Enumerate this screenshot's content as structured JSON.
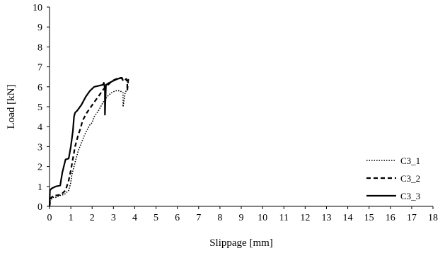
{
  "chart_data": {
    "type": "line",
    "title": "",
    "xlabel": "Slippage [mm]",
    "ylabel": "Load [kN]",
    "xlim": [
      0,
      18
    ],
    "ylim": [
      0,
      10
    ],
    "xticks": [
      0,
      1,
      2,
      3,
      4,
      5,
      6,
      7,
      8,
      9,
      10,
      11,
      12,
      13,
      14,
      15,
      16,
      17,
      18
    ],
    "yticks": [
      0,
      1,
      2,
      3,
      4,
      5,
      6,
      7,
      8,
      9,
      10
    ],
    "grid": false,
    "legend_position": "right",
    "series": [
      {
        "name": "C3_1",
        "line_style": "dotted",
        "x": [
          0,
          0.05,
          0.15,
          0.3,
          0.5,
          0.7,
          0.9,
          1.0,
          1.05,
          1.2,
          1.35,
          1.5,
          1.65,
          1.8,
          1.9,
          2.0,
          2.1,
          2.3,
          2.5,
          2.7,
          2.9,
          3.1,
          3.3,
          3.45,
          3.45,
          3.55,
          3.6,
          3.6
        ],
        "y": [
          0,
          0.3,
          0.45,
          0.45,
          0.55,
          0.6,
          0.8,
          1.2,
          1.6,
          2.2,
          2.8,
          3.2,
          3.6,
          3.9,
          4.1,
          4.2,
          4.5,
          4.8,
          5.2,
          5.5,
          5.7,
          5.8,
          5.8,
          5.7,
          5.0,
          5.7,
          5.8,
          5.8
        ]
      },
      {
        "name": "C3_2",
        "line_style": "dashed",
        "x": [
          0,
          0.05,
          0.2,
          0.35,
          0.55,
          0.75,
          0.9,
          1.0,
          1.1,
          1.2,
          1.35,
          1.45,
          1.55,
          1.75,
          1.95,
          2.15,
          2.35,
          2.55,
          2.75,
          2.95,
          3.15,
          3.35,
          3.5,
          3.6,
          3.65,
          3.65,
          3.7
        ],
        "y": [
          0,
          0.4,
          0.55,
          0.55,
          0.6,
          0.8,
          1.3,
          1.8,
          2.4,
          3.0,
          3.6,
          3.9,
          4.3,
          4.7,
          5.0,
          5.3,
          5.6,
          5.9,
          6.1,
          6.3,
          6.4,
          6.45,
          6.3,
          6.4,
          6.2,
          5.8,
          6.4
        ]
      },
      {
        "name": "C3_3",
        "line_style": "solid",
        "x": [
          0,
          0.02,
          0.1,
          0.3,
          0.5,
          0.6,
          0.75,
          0.9,
          1.0,
          1.1,
          1.15,
          1.2,
          1.3,
          1.5,
          1.7,
          1.9,
          2.1,
          2.3,
          2.5,
          2.55,
          2.6,
          2.6,
          2.65,
          2.8,
          3.0,
          3.2,
          3.4,
          3.45
        ],
        "y": [
          0,
          0.8,
          0.9,
          1.0,
          1.05,
          1.7,
          2.35,
          2.4,
          3.0,
          3.8,
          4.5,
          4.7,
          4.8,
          5.1,
          5.5,
          5.8,
          6.0,
          6.05,
          6.1,
          6.2,
          5.9,
          4.6,
          6.1,
          6.2,
          6.3,
          6.4,
          6.45,
          6.3
        ]
      }
    ]
  }
}
